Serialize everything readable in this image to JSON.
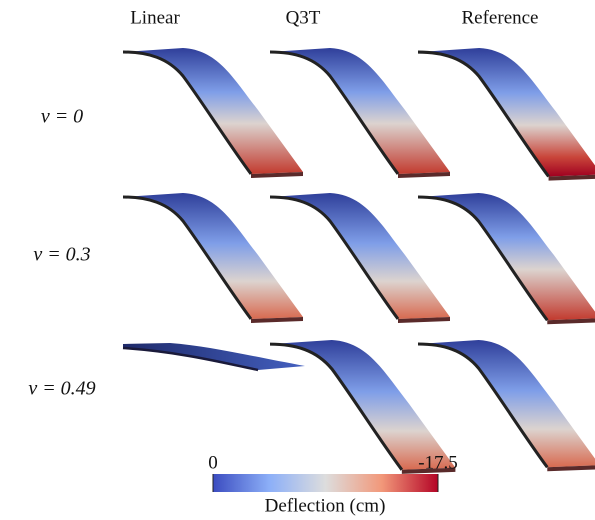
{
  "columns": [
    "Linear",
    "Q3T",
    "Reference"
  ],
  "rows": [
    "ν = 0",
    "ν = 0.3",
    "ν = 0.49"
  ],
  "colorbar": {
    "ticks": [
      0,
      -17.5
    ],
    "label": "Deflection (cm)"
  }
}
